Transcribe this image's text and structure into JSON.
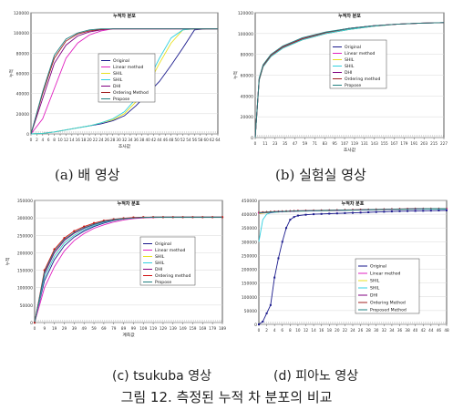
{
  "captions": {
    "a": "(a) 배 영상",
    "b": "(b) 실험실 영상",
    "c": "(c) tsukuba 영상",
    "d": "(d) 피아노 영상",
    "figure": "그림 12. 측정된 누적 차 분포의 비교"
  },
  "chart_data": [
    {
      "type": "line",
      "title": "누적차 분포",
      "xlabel": "조사값",
      "ylabel": "누적",
      "x": [
        0,
        4,
        8,
        12,
        16,
        20,
        24,
        28,
        32,
        36,
        40,
        44,
        48,
        52,
        56,
        60,
        64
      ],
      "x_tick_labels": [
        "0",
        "2",
        "4",
        "6",
        "8",
        "10",
        "12",
        "14",
        "16",
        "18",
        "20",
        "22",
        "24",
        "26",
        "28",
        "30",
        "32",
        "34",
        "36",
        "38",
        "40",
        "42",
        "44",
        "46",
        "48",
        "50",
        "52",
        "54",
        "56",
        "58",
        "60",
        "62",
        "64"
      ],
      "yticks": [
        0,
        20000,
        40000,
        60000,
        80000,
        100000,
        120000
      ],
      "ylim": [
        0,
        120000
      ],
      "xlim": [
        0,
        64
      ],
      "legend_position": "center",
      "series": [
        {
          "name": "Original",
          "color": "#1a1a8c",
          "values": [
            0,
            500,
            2000,
            4000,
            6000,
            8000,
            10000,
            13000,
            18000,
            28000,
            40000,
            52000,
            68000,
            85000,
            103000,
            104000,
            104000
          ]
        },
        {
          "name": "Linear method",
          "color": "#e020c0",
          "values": [
            0,
            15000,
            45000,
            75000,
            90000,
            98000,
            102000,
            104000,
            104000,
            104000,
            104000,
            104000,
            104000,
            104000,
            104000,
            104000,
            104000
          ]
        },
        {
          "name": "SHIL",
          "color": "#e8e020",
          "values": [
            0,
            500,
            2000,
            4000,
            6000,
            8000,
            11000,
            14000,
            20000,
            32000,
            48000,
            70000,
            90000,
            103000,
            104000,
            104000,
            104000
          ]
        },
        {
          "name": "SHIL",
          "color": "#30d0e0",
          "values": [
            0,
            500,
            2000,
            4000,
            6000,
            8000,
            11000,
            15000,
            22000,
            35000,
            52000,
            75000,
            95000,
            103000,
            104000,
            104000,
            104000
          ]
        },
        {
          "name": "DHI",
          "color": "#800080",
          "values": [
            0,
            35000,
            70000,
            88000,
            97000,
            101000,
            103000,
            104000,
            104000,
            104000,
            104000,
            104000,
            104000,
            104000,
            104000,
            104000,
            104000
          ]
        },
        {
          "name": "Ordering Method",
          "color": "#a02020",
          "values": [
            0,
            40000,
            75000,
            92000,
            99000,
            102000,
            103500,
            104000,
            104000,
            104000,
            104000,
            104000,
            104000,
            104000,
            104000,
            104000,
            104000
          ]
        },
        {
          "name": "Propose",
          "color": "#208080",
          "values": [
            0,
            42000,
            78000,
            94000,
            100000,
            103000,
            104000,
            104000,
            104000,
            104000,
            104000,
            104000,
            104000,
            104000,
            104000,
            104000,
            104000
          ]
        }
      ]
    },
    {
      "type": "line",
      "title": "누적차 분포",
      "xlabel": "조사값",
      "ylabel": "누적",
      "x": [
        0,
        5,
        10,
        20,
        35,
        60,
        90,
        120,
        150,
        180,
        210,
        240
      ],
      "x_tick_labels": [
        "0",
        "11",
        "23",
        "35",
        "47",
        "59",
        "71",
        "83",
        "95",
        "107",
        "119",
        "131",
        "143",
        "155",
        "167",
        "179",
        "191",
        "203",
        "215",
        "227"
      ],
      "yticks": [
        0,
        20000,
        40000,
        60000,
        80000,
        100000,
        120000
      ],
      "ylim": [
        0,
        120000
      ],
      "xlim": [
        0,
        240
      ],
      "legend_position": "center-right",
      "series": [
        {
          "name": "Original",
          "color": "#1a1a8c",
          "values": [
            0,
            55000,
            68000,
            78000,
            86000,
            94000,
            100000,
            104000,
            107000,
            109000,
            110000,
            110500
          ]
        },
        {
          "name": "Linear method",
          "color": "#e020c0",
          "values": [
            0,
            56000,
            69000,
            79000,
            87000,
            95000,
            101000,
            105000,
            107500,
            109000,
            110000,
            110500
          ]
        },
        {
          "name": "SHIL",
          "color": "#e8e020",
          "values": [
            0,
            55000,
            68000,
            78000,
            86000,
            94000,
            100000,
            104000,
            107000,
            109000,
            110000,
            110500
          ]
        },
        {
          "name": "SHIL",
          "color": "#30d0e0",
          "values": [
            0,
            55000,
            68000,
            78000,
            86000,
            94000,
            100000,
            104000,
            107000,
            109000,
            110000,
            110500
          ]
        },
        {
          "name": "DHI",
          "color": "#800080",
          "values": [
            0,
            56000,
            69000,
            79000,
            87000,
            95000,
            101000,
            105000,
            107500,
            109000,
            110000,
            110500
          ]
        },
        {
          "name": "Ordering method",
          "color": "#a02020",
          "values": [
            0,
            56000,
            69000,
            79000,
            87000,
            95000,
            101000,
            105000,
            107500,
            109000,
            110000,
            110500
          ]
        },
        {
          "name": "Propose",
          "color": "#208080",
          "values": [
            0,
            57000,
            70000,
            80000,
            88000,
            96000,
            101500,
            105000,
            107500,
            109000,
            110000,
            110500
          ]
        }
      ]
    },
    {
      "type": "line",
      "title": "누적차 분포",
      "xlabel": "계측값",
      "ylabel": "누적",
      "x": [
        0,
        10,
        20,
        30,
        40,
        50,
        60,
        70,
        80,
        90,
        100,
        110,
        120,
        130,
        140,
        150,
        160,
        170,
        180,
        190
      ],
      "x_tick_labels": [
        "0",
        "9",
        "19",
        "29",
        "39",
        "49",
        "59",
        "69",
        "79",
        "89",
        "99",
        "109",
        "119",
        "129",
        "139",
        "149",
        "159",
        "169",
        "179",
        "189"
      ],
      "yticks": [
        0,
        50000,
        100000,
        150000,
        200000,
        250000,
        300000,
        350000
      ],
      "ylim": [
        0,
        350000
      ],
      "xlim": [
        0,
        190
      ],
      "legend_position": "center-right",
      "series": [
        {
          "name": "Original",
          "color": "#1a1a8c",
          "values": [
            0,
            120000,
            180000,
            220000,
            245000,
            262000,
            275000,
            285000,
            292000,
            297000,
            300000,
            301000,
            302000,
            302000,
            302000,
            302000,
            302000,
            302000,
            302000,
            302000
          ]
        },
        {
          "name": "Linear method",
          "color": "#e020c0",
          "values": [
            0,
            100000,
            160000,
            205000,
            235000,
            255000,
            270000,
            280000,
            288000,
            294000,
            298000,
            300000,
            301000,
            302000,
            302000,
            302000,
            302000,
            302000,
            302000,
            302000
          ]
        },
        {
          "name": "SHIL",
          "color": "#e8e020",
          "values": [
            0,
            130000,
            190000,
            228000,
            250000,
            266000,
            278000,
            287000,
            293000,
            297000,
            300000,
            301000,
            302000,
            302000,
            302000,
            302000,
            302000,
            302000,
            302000,
            302000
          ]
        },
        {
          "name": "SHIL",
          "color": "#30d0e0",
          "values": [
            0,
            130000,
            190000,
            228000,
            250000,
            266000,
            278000,
            287000,
            293000,
            297000,
            300000,
            301000,
            302000,
            302000,
            302000,
            302000,
            302000,
            302000,
            302000,
            302000
          ]
        },
        {
          "name": "DHI",
          "color": "#800080",
          "values": [
            0,
            140000,
            200000,
            235000,
            256000,
            270000,
            281000,
            289000,
            294000,
            298000,
            300000,
            301000,
            302000,
            302000,
            302000,
            302000,
            302000,
            302000,
            302000,
            302000
          ]
        },
        {
          "name": "Ordering method",
          "color": "#d01010",
          "values": [
            0,
            150000,
            210000,
            242000,
            262000,
            275000,
            285000,
            292000,
            296000,
            299000,
            301000,
            302000,
            302000,
            302000,
            302000,
            302000,
            302000,
            302000,
            302000,
            302000
          ]
        },
        {
          "name": "Propose",
          "color": "#208080",
          "values": [
            0,
            145000,
            205000,
            238000,
            258000,
            272000,
            282000,
            290000,
            295000,
            298000,
            300000,
            301500,
            302000,
            302000,
            302000,
            302000,
            302000,
            302000,
            302000,
            302000
          ]
        }
      ]
    },
    {
      "type": "line",
      "title": "누적차 분포",
      "xlabel": "",
      "ylabel": "",
      "x": [
        0,
        1,
        2,
        3,
        4,
        5,
        6,
        7,
        8,
        9,
        10,
        12,
        14,
        16,
        18,
        20,
        22,
        24,
        26,
        28,
        30,
        32,
        34,
        36,
        38,
        40,
        42,
        44,
        46,
        48
      ],
      "x_tick_labels": [
        "0",
        "2",
        "4",
        "6",
        "8",
        "10",
        "12",
        "14",
        "16",
        "18",
        "20",
        "22",
        "24",
        "26",
        "28",
        "30",
        "32",
        "34",
        "36",
        "38",
        "40",
        "42",
        "44",
        "46",
        "48"
      ],
      "yticks": [
        0,
        50000,
        100000,
        150000,
        200000,
        250000,
        300000,
        350000,
        400000,
        450000
      ],
      "ylim": [
        0,
        450000
      ],
      "xlim": [
        0,
        48
      ],
      "legend_position": "center-right",
      "series": [
        {
          "name": "Original",
          "color": "#1a1a8c",
          "values": [
            0,
            10000,
            40000,
            70000,
            170000,
            240000,
            300000,
            350000,
            380000,
            390000,
            395000,
            398000,
            400000,
            401000,
            402000,
            403000,
            404000,
            405000,
            406000,
            407000,
            408000,
            409000,
            410000,
            411000,
            411500,
            412000,
            412500,
            413000,
            413500,
            414000
          ]
        },
        {
          "name": "Linear method",
          "color": "#e020c0",
          "values": [
            405000,
            406000,
            407000,
            408000,
            409000,
            409500,
            410000,
            410500,
            411000,
            411500,
            412000,
            412500,
            413000,
            413500,
            414000,
            414500,
            415000,
            415500,
            416000,
            416500,
            417000,
            417500,
            418000,
            418500,
            419000,
            419500,
            420000,
            420000,
            420000,
            420000
          ]
        },
        {
          "name": "SHIL",
          "color": "#e8e020",
          "values": [
            402000,
            404000,
            405000,
            406000,
            407000,
            408000,
            409000,
            409500,
            410000,
            410500,
            411000,
            411500,
            412000,
            412500,
            413000,
            413500,
            414000,
            414500,
            415000,
            415500,
            416000,
            416500,
            417000,
            417500,
            418000,
            418500,
            419000,
            419000,
            419000,
            419000
          ]
        },
        {
          "name": "SHIL",
          "color": "#30d0e0",
          "values": [
            300000,
            380000,
            400000,
            405000,
            407000,
            408000,
            409000,
            409500,
            410000,
            410500,
            411000,
            411500,
            412000,
            412500,
            413000,
            413500,
            414000,
            414500,
            415000,
            415500,
            416000,
            416500,
            417000,
            417500,
            418000,
            418500,
            419000,
            419000,
            419000,
            419000
          ]
        },
        {
          "name": "DHI",
          "color": "#800080",
          "values": [
            404000,
            405000,
            406000,
            407000,
            408000,
            409000,
            409500,
            410000,
            410500,
            411000,
            411500,
            412000,
            412500,
            413000,
            413500,
            414000,
            414500,
            415000,
            415500,
            416000,
            416500,
            417000,
            417500,
            418000,
            418500,
            419000,
            419500,
            420000,
            420000,
            420000
          ]
        },
        {
          "name": "Ordering Method",
          "color": "#a02020",
          "values": [
            406000,
            407000,
            408000,
            409000,
            409500,
            410000,
            410500,
            411000,
            411500,
            412000,
            412500,
            413000,
            413500,
            414000,
            414500,
            415000,
            415500,
            416000,
            416500,
            417000,
            417500,
            418000,
            418500,
            419000,
            419500,
            420000,
            420000,
            420000,
            420000,
            420000
          ]
        },
        {
          "name": "Proposed Method",
          "color": "#208080",
          "values": [
            405000,
            406000,
            407000,
            408000,
            409000,
            409500,
            410000,
            410500,
            411000,
            411500,
            412000,
            412500,
            413000,
            413500,
            414000,
            414500,
            415000,
            415500,
            416000,
            416500,
            417000,
            417500,
            418000,
            418500,
            419000,
            419500,
            420000,
            420000,
            420000,
            420000
          ]
        }
      ]
    }
  ]
}
